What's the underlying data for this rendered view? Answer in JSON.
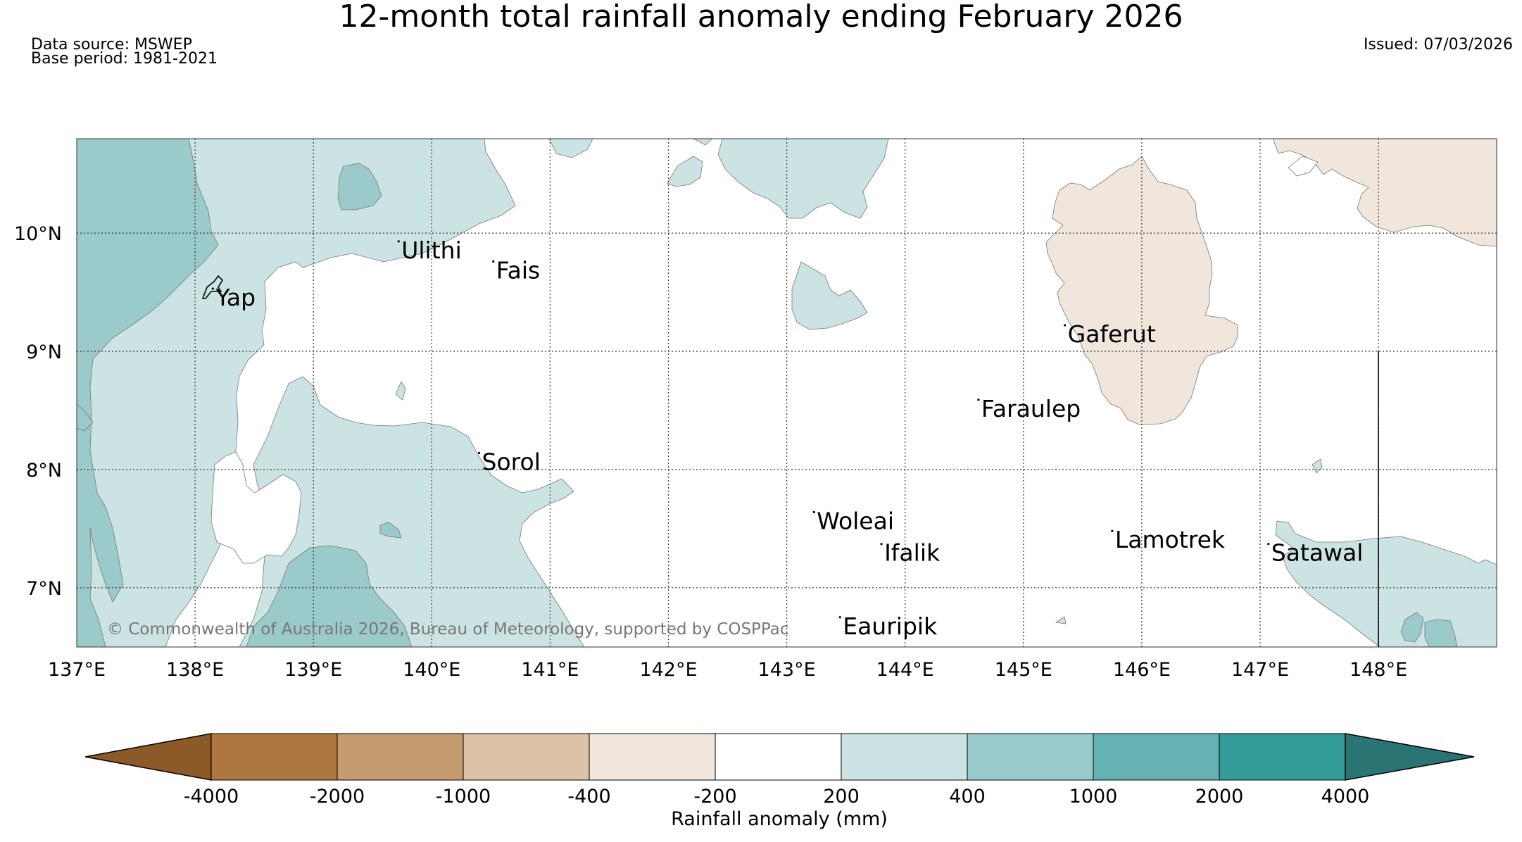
{
  "header": {
    "title": "12-month total rainfall anomaly ending February 2026",
    "data_source": "Data source: MSWEP",
    "base_period": "Base period: 1981-2021",
    "issued": "Issued: 07/03/2026"
  },
  "map": {
    "lon_range": [
      137,
      149
    ],
    "lat_range": [
      6.5,
      10.8
    ],
    "lon_ticks": [
      137,
      138,
      139,
      140,
      141,
      142,
      143,
      144,
      145,
      146,
      147,
      148
    ],
    "lat_ticks": [
      7,
      8,
      9,
      10
    ],
    "lon_tick_labels": [
      "137°E",
      "138°E",
      "139°E",
      "140°E",
      "141°E",
      "142°E",
      "143°E",
      "144°E",
      "145°E",
      "146°E",
      "147°E",
      "148°E"
    ],
    "lat_tick_labels": [
      "7°N",
      "8°N",
      "9°N",
      "10°N"
    ],
    "grid": "dotted",
    "places": [
      {
        "name": "Yap",
        "lon": 138.15,
        "lat": 9.53
      },
      {
        "name": "Ulithi",
        "lon": 139.72,
        "lat": 9.93
      },
      {
        "name": "Fais",
        "lon": 140.52,
        "lat": 9.76
      },
      {
        "name": "Gaferut",
        "lon": 145.35,
        "lat": 9.22
      },
      {
        "name": "Faraulep",
        "lon": 144.62,
        "lat": 8.59
      },
      {
        "name": "Sorol",
        "lon": 140.4,
        "lat": 8.14
      },
      {
        "name": "Woleai",
        "lon": 143.23,
        "lat": 7.64
      },
      {
        "name": "Ifalik",
        "lon": 143.8,
        "lat": 7.37
      },
      {
        "name": "Lamotrek",
        "lon": 145.75,
        "lat": 7.48
      },
      {
        "name": "Satawal",
        "lon": 147.07,
        "lat": 7.37
      },
      {
        "name": "Eauripik",
        "lon": 143.45,
        "lat": 6.75
      }
    ],
    "copyright": "© Commonwealth of Australia 2026, Bureau of Meteorology, supported by COSPPac"
  },
  "colorbar": {
    "label": "Rainfall anomaly (mm)",
    "boundaries": [
      "-4000",
      "-2000",
      "-1000",
      "-400",
      "-200",
      "200",
      "400",
      "1000",
      "2000",
      "4000"
    ],
    "colors": [
      "#8c5a28",
      "#ad773f",
      "#c59b70",
      "#dcc2a9",
      "#f0e6dc",
      "#ffffff",
      "#cbe4e3",
      "#9bcaca",
      "#65b2b2",
      "#339b98",
      "#2a7473"
    ],
    "extend": "both"
  }
}
